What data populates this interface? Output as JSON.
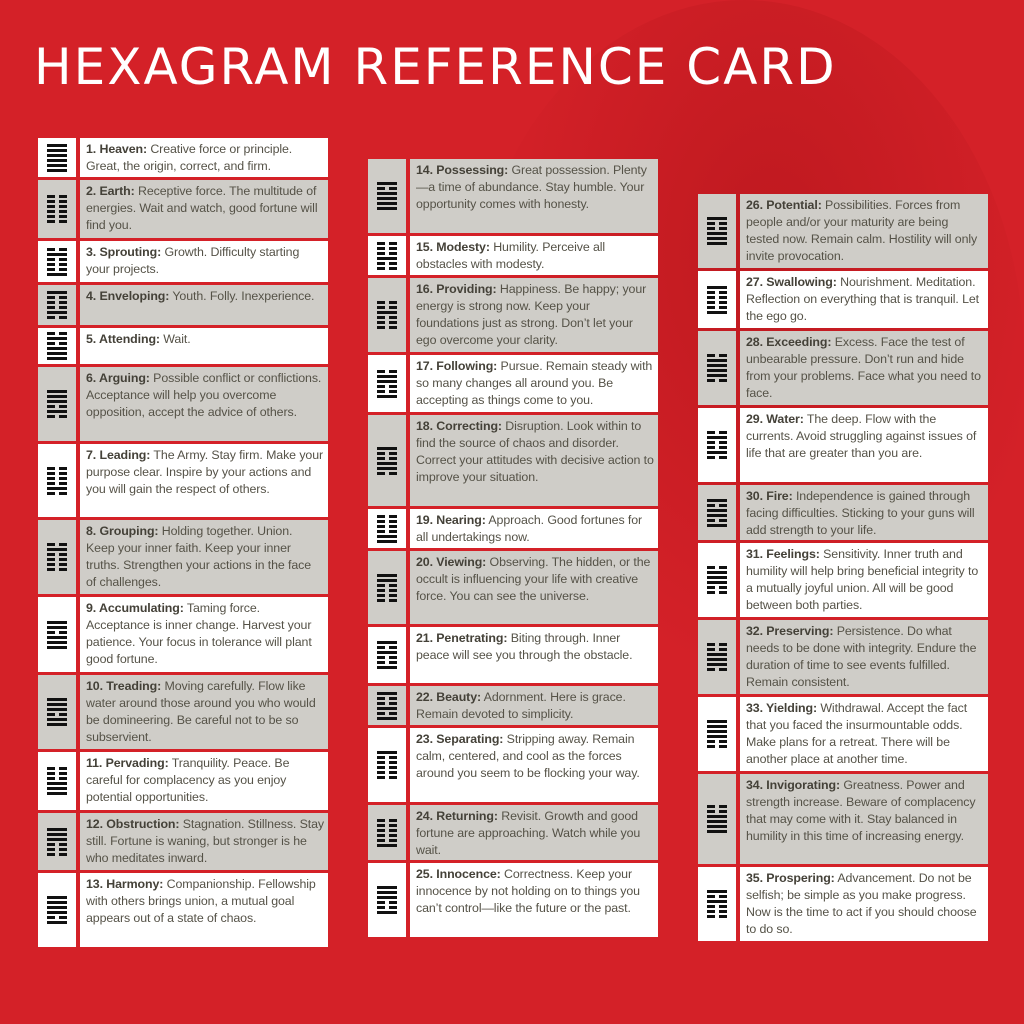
{
  "title": "HEXAGRAM REFERENCE CARD",
  "colors": {
    "background": "#d42128",
    "row_white": "#ffffff",
    "row_gray": "#cfcdc8",
    "text": "#555247"
  },
  "columns": [
    [
      {
        "name": "1. Heaven:",
        "text": " Creative force or principle. Great, the origin, correct, and firm.",
        "lines": "111111"
      },
      {
        "name": "2. Earth:",
        "text": " Receptive force. The multitude of energies. Wait and watch, good fortune will find you.",
        "lines": "000000"
      },
      {
        "name": "3. Sprouting:",
        "text": " Growth. Difficulty starting your projects.",
        "lines": "100010"
      },
      {
        "name": "4. Enveloping:",
        "text": " Youth. Folly. Inexperience.",
        "lines": "010001"
      },
      {
        "name": "5. Attending:",
        "text": " Wait.",
        "lines": "111010"
      },
      {
        "name": "6. Arguing:",
        "text": " Possible conflict or conflictions. Acceptance will help you overcome opposition, accept the advice of others.",
        "lines": "010111"
      },
      {
        "name": "7. Leading:",
        "text": " The Army. Stay firm. Make your purpose clear. Inspire by your actions and you will gain the respect of others.",
        "lines": "010000"
      },
      {
        "name": "8. Grouping:",
        "text": " Holding together. Union. Keep your inner faith. Keep your inner truths. Strengthen your actions in the face of challenges.",
        "lines": "000010"
      },
      {
        "name": "9. Accumulating:",
        "text": " Taming force. Acceptance is inner change. Harvest your patience. Your focus in tolerance will plant good fortune.",
        "lines": "111011"
      },
      {
        "name": "10. Treading:",
        "text": " Moving carefully. Flow like water around those around you who would be domineering. Be careful not to be so subservient.",
        "lines": "110111"
      },
      {
        "name": "11. Pervading:",
        "text": " Tranquility. Peace. Be careful for complacency as you enjoy potential opportunities.",
        "lines": "111000"
      },
      {
        "name": "12. Obstruction:",
        "text": " Stagnation. Stillness. Stay still. Fortune is waning, but stronger is he who meditates inward.",
        "lines": "000111"
      },
      {
        "name": "13. Harmony:",
        "text": " Companionship. Fellowship with others brings union, a mutual goal appears out of a state of chaos.",
        "lines": "101111"
      }
    ],
    [
      {
        "name": "14. Possessing:",
        "text": " Great possession. Plenty—a time of abundance. Stay humble. Your opportunity comes with honesty.",
        "lines": "111101"
      },
      {
        "name": "15. Modesty:",
        "text": " Humility. Perceive all obstacles with modesty.",
        "lines": "001000"
      },
      {
        "name": "16. Providing:",
        "text": " Happiness. Be happy; your energy is strong now. Keep your foundations just as strong. Don’t let your ego overcome your clarity.",
        "lines": "000100"
      },
      {
        "name": "17. Following:",
        "text": " Pursue. Remain steady with so many changes all around you. Be accepting as things come to you.",
        "lines": "100110"
      },
      {
        "name": "18. Correcting:",
        "text": " Disruption. Look within to find the source of chaos and disorder. Correct your attitudes with decisive action to improve your situation.",
        "lines": "011001"
      },
      {
        "name": "19. Nearing:",
        "text": " Approach. Good fortunes for all undertakings now.",
        "lines": "110000"
      },
      {
        "name": "20. Viewing:",
        "text": " Observing. The hidden, or the occult is influencing your life with creative force. You can see the universe.",
        "lines": "000011"
      },
      {
        "name": "21. Penetrating:",
        "text": " Biting through. Inner peace will see you through the obstacle.",
        "lines": "100101"
      },
      {
        "name": "22. Beauty:",
        "text": " Adornment. Here is grace. Remain devoted to simplicity.",
        "lines": "101001"
      },
      {
        "name": "23. Separating:",
        "text": " Stripping away. Remain calm, centered, and cool as the forces around you seem to be flocking your way.",
        "lines": "000001"
      },
      {
        "name": "24. Returning:",
        "text": " Revisit. Growth and good fortune are approaching. Watch while you wait.",
        "lines": "100000"
      },
      {
        "name": "25. Innocence:",
        "text": " Correctness. Keep your innocence by not holding on to things you can’t control—like the future or the past.",
        "lines": "100111"
      }
    ],
    [
      {
        "name": "26. Potential:",
        "text": " Possibilities. Forces from people and/or your maturity are being tested now. Remain calm. Hostility will only invite provocation.",
        "lines": "111001"
      },
      {
        "name": "27. Swallowing:",
        "text": " Nourishment. Meditation. Reflection on everything that is tranquil. Let the ego go.",
        "lines": "100001"
      },
      {
        "name": "28. Exceeding:",
        "text": " Excess. Face the test of unbearable pressure. Don’t run and hide from your problems. Face what you need to face.",
        "lines": "011110"
      },
      {
        "name": "29. Water:",
        "text": " The deep. Flow with the currents. Avoid struggling against issues of life that are greater than you are.",
        "lines": "010010"
      },
      {
        "name": "30. Fire:",
        "text": " Independence is gained through facing difficulties. Sticking to your guns will add strength to your life.",
        "lines": "101101"
      },
      {
        "name": "31. Feelings:",
        "text": " Sensitivity. Inner truth and humility will help bring beneficial integrity to a mutually joyful union. All will be good between both parties.",
        "lines": "001110"
      },
      {
        "name": "32. Preserving:",
        "text": " Persistence. Do what needs to be done with integrity. Endure the duration of time to see events fulfilled. Remain consistent.",
        "lines": "011100"
      },
      {
        "name": "33. Yielding:",
        "text": " Withdrawal. Accept the fact that you faced the insurmountable odds. Make plans for a retreat. There will be another place at another time.",
        "lines": "001111"
      },
      {
        "name": "34. Invigorating:",
        "text": " Greatness. Power and strength increase. Beware of complacency that may come with it. Stay balanced in humility in this time of increasing energy.",
        "lines": "111100"
      },
      {
        "name": "35. Prospering:",
        "text": " Advancement. Do not be selfish; be simple as you make progress. Now is the time to act if you should choose to do so.",
        "lines": "000101"
      }
    ]
  ]
}
